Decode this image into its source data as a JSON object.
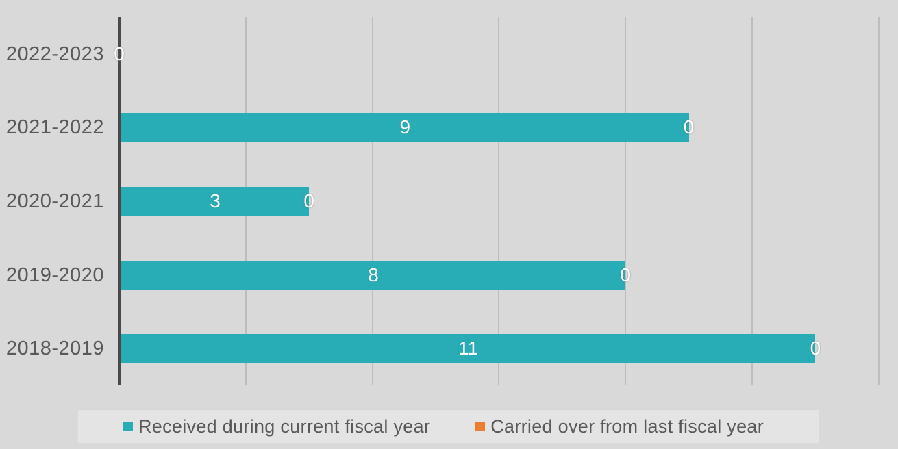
{
  "chart_data": {
    "type": "bar",
    "orientation": "horizontal",
    "stacked": true,
    "title": "",
    "categories": [
      "2022-2023",
      "2021-2022",
      "2020-2021",
      "2019-2020",
      "2018-2019"
    ],
    "series": [
      {
        "name": "Received during current fiscal year",
        "color": "#28ADB7",
        "values": [
          0,
          9,
          3,
          8,
          11
        ]
      },
      {
        "name": "Carried over from last fiscal year",
        "color": "#ED7D31",
        "values": [
          0,
          0,
          0,
          0,
          0
        ]
      }
    ],
    "bar_data_labels": [
      "",
      "9",
      "3",
      "8",
      "11"
    ],
    "end_data_labels": [
      "0",
      "0",
      "0",
      "0",
      "0"
    ],
    "xlabel": "",
    "ylabel": "",
    "xlim": [
      0,
      12.3
    ],
    "gridlines": [
      2,
      4,
      6,
      8,
      10,
      12
    ],
    "axis_tick_labels_visible": false,
    "grid": true,
    "legend_position": "bottom",
    "colors": {
      "background": "#D9D9D9",
      "legend_background": "#E4E4E4",
      "gridline": "#BDBDBD",
      "axis_line": "#4A4A4A",
      "text": "#595959",
      "data_label_text": "#FFFFFF",
      "series_teal": "#28ADB7",
      "series_orange": "#ED7D31"
    }
  }
}
